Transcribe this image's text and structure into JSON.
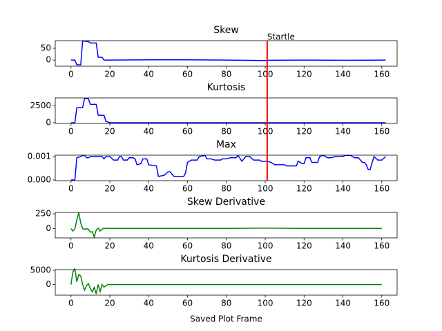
{
  "chart_data": [
    {
      "type": "line",
      "title": "Skew",
      "color": "#0000ff",
      "x": [
        0,
        2,
        3,
        5,
        6,
        7,
        9,
        10,
        13,
        14,
        16,
        17,
        20,
        40,
        60,
        80,
        100,
        102,
        120,
        140,
        162
      ],
      "values": [
        0,
        0,
        -20,
        -20,
        80,
        80,
        78,
        72,
        72,
        12,
        12,
        0,
        0,
        1,
        1,
        0,
        -2,
        -1,
        0,
        -1,
        0
      ],
      "xlim": [
        -8.1,
        167.9
      ],
      "xticks": [
        0,
        20,
        40,
        60,
        80,
        100,
        120,
        140,
        160
      ],
      "ylim": [
        -26,
        82
      ],
      "yticks": [
        0,
        50
      ],
      "vline": {
        "x": 101,
        "label": "Startle",
        "color": "#ff0000"
      }
    },
    {
      "type": "line",
      "title": "Kurtosis",
      "color": "#0000ff",
      "x": [
        0,
        2,
        3,
        5,
        6,
        7,
        9,
        10,
        13,
        14,
        16,
        17,
        18,
        19,
        20,
        162
      ],
      "values": [
        0,
        0,
        2200,
        2200,
        2200,
        3600,
        3500,
        2700,
        2700,
        1100,
        1100,
        1100,
        200,
        100,
        0,
        0
      ],
      "xlim": [
        -8.1,
        167.9
      ],
      "xticks": [
        0,
        20,
        40,
        60,
        80,
        100,
        120,
        140,
        160
      ],
      "ylim": [
        -104,
        3646
      ],
      "yticks": [
        0,
        2500
      ],
      "vline": {
        "x": 101,
        "color": "#ff0000"
      }
    },
    {
      "type": "line",
      "title": "Max",
      "color": "#0000ff",
      "x": [
        0,
        2,
        3,
        5,
        6,
        7,
        8,
        9,
        10,
        16,
        17,
        18,
        20,
        22,
        24,
        25,
        26,
        27,
        29,
        30,
        32,
        33,
        34,
        36,
        37,
        39,
        40,
        44,
        45,
        48,
        50,
        51,
        53,
        58,
        59,
        60,
        62,
        65,
        66,
        69,
        70,
        72,
        74,
        77,
        78,
        80,
        82,
        85,
        86,
        88,
        90,
        92,
        94,
        97,
        98,
        101,
        103,
        105,
        110,
        111,
        116,
        117,
        119,
        120,
        121,
        123,
        124,
        127,
        128,
        130,
        132,
        134,
        136,
        140,
        141,
        144,
        146,
        148,
        150,
        151,
        152,
        153,
        154,
        156,
        158,
        160,
        162
      ],
      "values": [
        0,
        0,
        0.00095,
        0.001,
        0.00105,
        0.00105,
        0.00095,
        0.00095,
        0.001,
        0.001,
        0.0009,
        0.001,
        0.001,
        0.00085,
        0.00085,
        0.001,
        0.001,
        0.00085,
        0.00085,
        0.00095,
        0.00095,
        0.0009,
        0.00065,
        0.0007,
        0.0009,
        0.0009,
        0.00065,
        0.0006,
        0.00015,
        0.0002,
        0.00035,
        0.00035,
        0.00015,
        0.00015,
        0.0003,
        0.00075,
        0.00085,
        0.00085,
        0.001,
        0.00105,
        0.0009,
        0.0009,
        0.00085,
        0.00085,
        0.0009,
        0.0009,
        0.00095,
        0.00095,
        0.00105,
        0.0008,
        0.001,
        0.001,
        0.00085,
        0.00085,
        0.0008,
        0.0008,
        0.00075,
        0.00065,
        0.00065,
        0.0006,
        0.0006,
        0.0008,
        0.0007,
        0.0007,
        0.00095,
        0.00095,
        0.00075,
        0.00075,
        0.001,
        0.00105,
        0.00095,
        0.00095,
        0.001,
        0.001,
        0.00105,
        0.00105,
        0.00095,
        0.00095,
        0.00075,
        0.00075,
        0.00065,
        0.00045,
        0.00045,
        0.001,
        0.00085,
        0.00085,
        0.001
      ],
      "xlim": [
        -8.1,
        167.9
      ],
      "xticks": [
        0,
        20,
        40,
        60,
        80,
        100,
        120,
        140,
        160
      ],
      "ylim": [
        -3e-05,
        0.00106
      ],
      "yticks": [
        {
          "value": 0,
          "label": "0.000"
        },
        0.001
      ],
      "vline": {
        "x": 101,
        "color": "#ff0000"
      }
    },
    {
      "type": "line",
      "title": "Skew Derivative",
      "color": "#008000",
      "x": [
        0,
        1,
        2,
        3,
        4,
        5,
        6,
        7,
        8,
        9,
        10,
        11,
        12,
        13,
        14,
        15,
        16,
        17,
        18,
        19,
        20,
        40,
        60,
        80,
        100,
        120,
        140,
        160
      ],
      "values": [
        0,
        -40,
        0,
        150,
        270,
        100,
        0,
        -10,
        0,
        -10,
        -60,
        -50,
        -140,
        -20,
        10,
        -40,
        -10,
        10,
        0,
        10,
        5,
        5,
        5,
        5,
        10,
        5,
        5,
        5
      ],
      "xlim": [
        -8.1,
        167.9
      ],
      "xticks": [
        0,
        20,
        40,
        60,
        80,
        100,
        120,
        140,
        160
      ],
      "ylim": [
        -155,
        274
      ],
      "yticks": [
        0,
        250
      ]
    },
    {
      "type": "line",
      "title": "Kurtosis Derivative",
      "xlabel": "Saved Plot Frame",
      "color": "#008000",
      "x": [
        0,
        1,
        2,
        3,
        4,
        5,
        6,
        7,
        8,
        9,
        10,
        11,
        12,
        13,
        14,
        15,
        16,
        17,
        18,
        19,
        20,
        160
      ],
      "values": [
        0,
        4500,
        5500,
        1000,
        3500,
        3000,
        0,
        -2000,
        -400,
        300,
        -1500,
        -2600,
        -1000,
        -3300,
        0,
        -2500,
        0,
        -900,
        -400,
        0,
        0,
        0
      ],
      "xlim": [
        -8.1,
        167.9
      ],
      "xticks": [
        0,
        20,
        40,
        60,
        80,
        100,
        120,
        140,
        160
      ],
      "ylim": [
        -3750,
        5250
      ],
      "yticks": [
        0,
        5000
      ]
    }
  ]
}
